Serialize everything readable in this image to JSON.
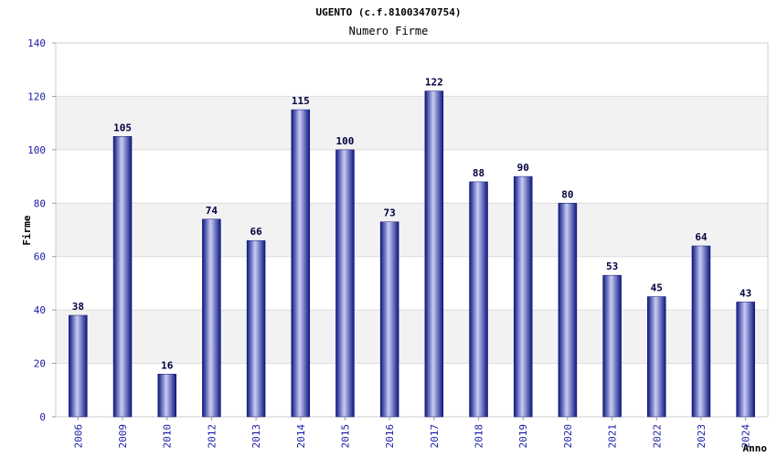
{
  "chart_data": {
    "type": "bar",
    "title": "UGENTO (c.f.81003470754)",
    "subtitle": "Numero Firme",
    "xlabel": "Anno",
    "ylabel": "Firme",
    "categories": [
      "2006",
      "2009",
      "2010",
      "2012",
      "2013",
      "2014",
      "2015",
      "2016",
      "2017",
      "2018",
      "2019",
      "2020",
      "2021",
      "2022",
      "2023",
      "2024"
    ],
    "values": [
      38,
      105,
      16,
      74,
      66,
      115,
      100,
      73,
      122,
      88,
      90,
      80,
      53,
      45,
      64,
      43
    ],
    "ylim": [
      0,
      140
    ],
    "yticks": [
      0,
      20,
      40,
      60,
      80,
      100,
      120,
      140
    ],
    "grid": true,
    "grid_bands": "alternating",
    "colors": {
      "bar": "#1f2a99",
      "bar_highlight": "#c8cdf5",
      "band": "#f2f2f2",
      "tick_text": "#1a1aa6"
    }
  }
}
